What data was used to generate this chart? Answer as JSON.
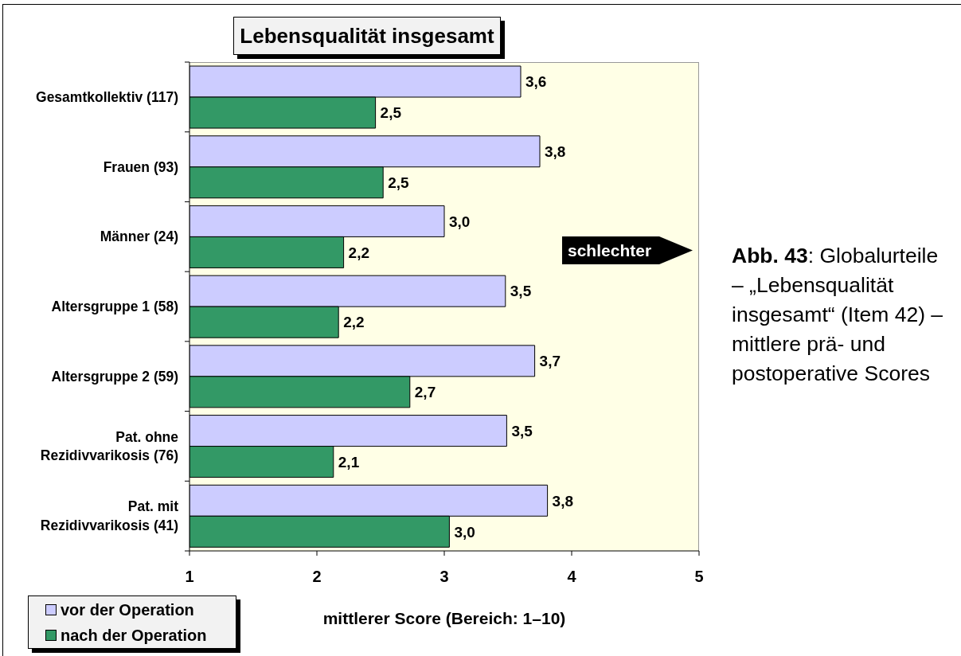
{
  "chart_data": {
    "type": "bar",
    "orientation": "horizontal",
    "title": "Lebensqualität insgesamt",
    "xlabel": "mittlerer Score (Bereich: 1–10)",
    "categories": [
      "Gesamtkollektiv (117)",
      "Frauen (93)",
      "Männer (24)",
      "Altersgruppe 1 (58)",
      "Altersgruppe 2 (59)",
      "Pat. ohne Rezidivvarikosis (76)",
      "Pat. mit Rezidivvarikosis (41)"
    ],
    "series": [
      {
        "name": "vor der Operation",
        "color": "#ccccff",
        "values": [
          3.6,
          3.75,
          3.0,
          3.48,
          3.71,
          3.49,
          3.81
        ],
        "value_labels": [
          "3,6",
          "3,8",
          "3,0",
          "3,5",
          "3,7",
          "3,5",
          "3,8"
        ]
      },
      {
        "name": "nach der Operation",
        "color": "#339966",
        "values": [
          2.46,
          2.52,
          2.21,
          2.17,
          2.73,
          2.13,
          3.04
        ],
        "value_labels": [
          "2,5",
          "2,5",
          "2,2",
          "2,2",
          "2,7",
          "2,1",
          "3,0"
        ]
      }
    ],
    "xlim": [
      1,
      5
    ],
    "xticks": [
      1,
      2,
      3,
      4,
      5
    ],
    "legend": "bottom left",
    "annotations": [
      "schlechter",
      "Abb. 43: Globalurteile – „Lebensqualität insgesamt“ (Item 42) – mittlere prä- und postoperative Scores"
    ]
  }
}
